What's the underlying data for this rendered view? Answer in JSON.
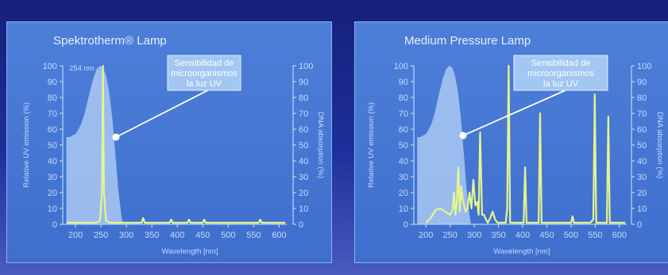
{
  "colors": {
    "background": "#1a2a8e",
    "panel": "#467ad4",
    "sensitivity_fill": "#b4d0f6",
    "emission_line": "#e6f58c",
    "axis": "#d7e4ff",
    "callout_box": "#a9cdf4"
  },
  "chart_data": [
    {
      "type": "line",
      "title": "Spektrotherm® Lamp",
      "xlabel": "Wavelength [nm]",
      "ylabel": "Relative UV emission (%)",
      "y2label": "DNA absorption (%)",
      "xlim": [
        175,
        615
      ],
      "ylim": [
        0,
        100
      ],
      "xticks": [
        200,
        250,
        300,
        350,
        400,
        450,
        500,
        550,
        600
      ],
      "yticks": [
        0,
        10,
        20,
        30,
        40,
        50,
        60,
        70,
        80,
        90,
        100
      ],
      "annotation": "254 nm",
      "callout": [
        "Sensibilidad de",
        "microorganismos",
        "la luz UV"
      ],
      "series": [
        {
          "kind": "area",
          "x": [
            182,
            188,
            194,
            200,
            206,
            212,
            218,
            224,
            230,
            236,
            242,
            248,
            254,
            260,
            266,
            272,
            278,
            284,
            290,
            293
          ],
          "y": [
            55,
            55,
            56,
            57,
            60,
            64,
            70,
            78,
            86,
            93,
            98,
            100,
            99,
            94,
            84,
            68,
            46,
            22,
            6,
            0
          ]
        },
        {
          "kind": "line",
          "x": [
            182,
            240,
            248,
            252,
            254,
            256,
            260,
            268,
            330,
            333,
            336,
            385,
            388,
            391,
            420,
            423,
            426,
            450,
            453,
            456,
            560,
            563,
            566,
            612
          ],
          "y": [
            1,
            1,
            2,
            20,
            100,
            20,
            2,
            1,
            1,
            4,
            1,
            1,
            3,
            1,
            1,
            3,
            1,
            1,
            3,
            1,
            1,
            3,
            1,
            1
          ]
        }
      ]
    },
    {
      "type": "line",
      "title": "Medium Pressure Lamp",
      "xlabel": "Wavelength [nm]",
      "ylabel": "Relative UV emission (%)",
      "y2label": "DNA absorption (%)",
      "xlim": [
        175,
        615
      ],
      "ylim": [
        0,
        100
      ],
      "xticks": [
        200,
        250,
        300,
        350,
        400,
        450,
        500,
        550,
        600
      ],
      "yticks": [
        0,
        10,
        20,
        30,
        40,
        50,
        60,
        70,
        80,
        90,
        100
      ],
      "callout": [
        "Sensibilidad de",
        "microorganismos",
        "la luz UV"
      ],
      "series": [
        {
          "kind": "area",
          "x": [
            182,
            188,
            194,
            200,
            206,
            212,
            218,
            224,
            230,
            236,
            242,
            248,
            254,
            260,
            266,
            272,
            278,
            284,
            290,
            293
          ],
          "y": [
            55,
            55,
            56,
            57,
            60,
            64,
            70,
            78,
            86,
            93,
            98,
            100,
            99,
            94,
            84,
            68,
            46,
            22,
            6,
            0
          ]
        },
        {
          "kind": "line",
          "x": [
            200,
            210,
            220,
            230,
            240,
            250,
            255,
            258,
            261,
            264,
            267,
            270,
            273,
            276,
            279,
            282,
            286,
            290,
            294,
            298,
            302,
            306,
            309,
            312,
            316,
            320,
            324,
            328,
            333,
            338,
            343,
            348,
            365,
            368,
            371,
            374,
            380,
            402,
            405,
            408,
            420,
            433,
            436,
            439,
            460,
            500,
            503,
            506,
            540,
            546,
            549,
            552,
            570,
            574,
            577,
            580,
            600,
            612
          ],
          "y": [
            1,
            4,
            9,
            10,
            8,
            6,
            9,
            20,
            6,
            14,
            36,
            8,
            24,
            16,
            12,
            8,
            10,
            20,
            10,
            28,
            12,
            14,
            6,
            58,
            6,
            6,
            3,
            1,
            4,
            8,
            3,
            1,
            1,
            10,
            100,
            1,
            1,
            1,
            36,
            1,
            1,
            1,
            70,
            1,
            1,
            1,
            5,
            1,
            1,
            3,
            82,
            1,
            1,
            1,
            68,
            1,
            1,
            1
          ]
        }
      ]
    }
  ]
}
